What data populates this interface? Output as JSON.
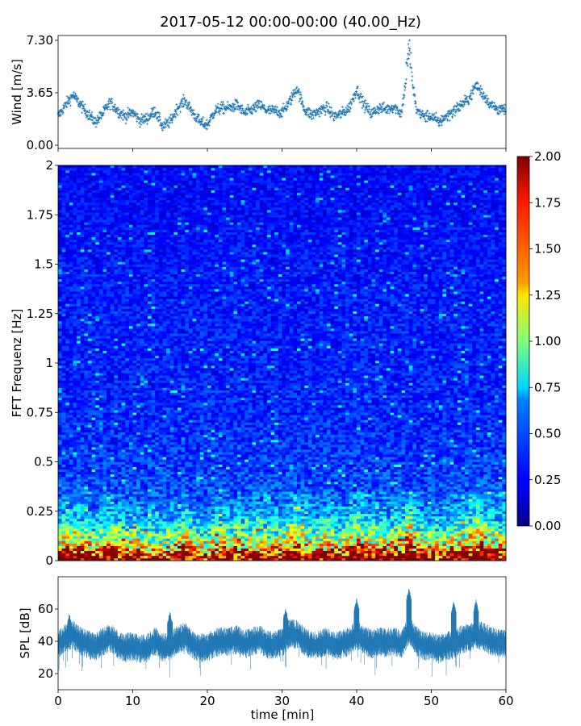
{
  "figure": {
    "title": "2017-05-12 00:00-00:00 (40.00_Hz)"
  },
  "chart_data": [
    {
      "type": "scatter",
      "panel": "wind",
      "ylabel": "Wind [m/s]",
      "xlabel": "",
      "xlim": [
        0,
        60
      ],
      "ylim": [
        0,
        7.3
      ],
      "yticks": [
        0.0,
        3.65,
        7.3
      ],
      "ytick_labels": [
        "0.00",
        "3.65",
        "7.30"
      ],
      "color": "#1f77b4",
      "marker": "+",
      "x": [
        0,
        1,
        2,
        3,
        4,
        5,
        6,
        7,
        8,
        9,
        10,
        11,
        12,
        13,
        14,
        15,
        16,
        17,
        18,
        19,
        20,
        21,
        22,
        23,
        24,
        25,
        26,
        27,
        28,
        29,
        30,
        31,
        32,
        33,
        34,
        35,
        36,
        37,
        38,
        39,
        40,
        41,
        42,
        43,
        44,
        45,
        46,
        47,
        48,
        49,
        50,
        51,
        52,
        53,
        54,
        55,
        56,
        57,
        58,
        59,
        60
      ],
      "values": [
        2.0,
        2.8,
        3.5,
        2.8,
        2.2,
        1.6,
        2.2,
        3.0,
        2.4,
        2.0,
        2.3,
        1.7,
        1.9,
        2.4,
        1.3,
        1.6,
        2.6,
        3.1,
        2.3,
        1.6,
        1.4,
        2.4,
        2.6,
        2.6,
        2.8,
        2.2,
        2.5,
        2.8,
        2.4,
        2.4,
        2.3,
        3.0,
        4.0,
        2.5,
        2.1,
        2.4,
        2.6,
        2.0,
        2.2,
        2.6,
        3.9,
        2.8,
        2.2,
        2.6,
        2.5,
        2.7,
        2.2,
        6.1,
        2.5,
        2.0,
        2.0,
        1.6,
        2.0,
        2.4,
        2.8,
        3.2,
        4.2,
        3.5,
        2.8,
        2.5,
        2.4
      ]
    },
    {
      "type": "heatmap",
      "panel": "spectrogram",
      "ylabel": "FFT Frequenz [Hz]",
      "xlabel": "",
      "xlim": [
        0,
        60
      ],
      "ylim": [
        0,
        2
      ],
      "yticks": [
        0,
        0.25,
        0.5,
        0.75,
        1,
        1.25,
        1.5,
        1.75,
        2
      ],
      "ytick_labels": [
        "0",
        "0.25",
        "0.5",
        "0.75",
        "1",
        "1.25",
        "1.5",
        "1.75",
        "2"
      ],
      "colormap": "jet",
      "colorbar": {
        "vmin": 0,
        "vmax": 2,
        "ticks": [
          0,
          0.25,
          0.5,
          0.75,
          1,
          1.25,
          1.5,
          1.75,
          2
        ],
        "tick_labels": [
          "0.00",
          "0.25",
          "0.50",
          "0.75",
          "1.00",
          "1.25",
          "1.50",
          "1.75",
          "2.00"
        ]
      },
      "frequency_profile": {
        "freq_hz": [
          0,
          0.02,
          0.05,
          0.1,
          0.15,
          0.2,
          0.25,
          0.3,
          0.5,
          0.75,
          1,
          1.25,
          1.5,
          1.75,
          2
        ],
        "typical_level": [
          2.0,
          1.9,
          1.4,
          1.0,
          0.8,
          0.6,
          0.5,
          0.42,
          0.36,
          0.32,
          0.3,
          0.3,
          0.28,
          0.26,
          0.25
        ]
      }
    },
    {
      "type": "line",
      "panel": "spl",
      "ylabel": "SPL [dB]",
      "xlabel": "time [min]",
      "xlim": [
        0,
        60
      ],
      "ylim": [
        10,
        80
      ],
      "yticks": [
        20,
        40,
        60
      ],
      "ytick_labels": [
        "20",
        "40",
        "60"
      ],
      "xticks": [
        0,
        10,
        20,
        30,
        40,
        50,
        60
      ],
      "xtick_labels": [
        "0",
        "10",
        "20",
        "30",
        "40",
        "50",
        "60"
      ],
      "color": "#1f77b4",
      "x": [
        0,
        1,
        2,
        3,
        4,
        5,
        6,
        7,
        8,
        9,
        10,
        11,
        12,
        13,
        14,
        15,
        16,
        17,
        18,
        19,
        20,
        21,
        22,
        23,
        24,
        25,
        26,
        27,
        28,
        29,
        30,
        31,
        32,
        33,
        34,
        35,
        36,
        37,
        38,
        39,
        40,
        41,
        42,
        43,
        44,
        45,
        46,
        47,
        48,
        49,
        50,
        51,
        52,
        53,
        54,
        55,
        56,
        57,
        58,
        59,
        60
      ],
      "values": [
        38,
        42,
        44,
        40,
        38,
        36,
        40,
        42,
        38,
        36,
        37,
        35,
        36,
        40,
        36,
        37,
        41,
        43,
        38,
        36,
        36,
        39,
        40,
        40,
        41,
        38,
        40,
        41,
        38,
        38,
        39,
        45,
        44,
        40,
        37,
        38,
        40,
        37,
        38,
        40,
        44,
        41,
        38,
        40,
        39,
        40,
        38,
        47,
        40,
        37,
        37,
        35,
        37,
        38,
        41,
        42,
        44,
        43,
        40,
        39,
        39
      ],
      "peaks": [
        [
          1.5,
          56
        ],
        [
          15,
          58
        ],
        [
          30.5,
          60
        ],
        [
          40,
          66
        ],
        [
          47,
          72
        ],
        [
          53,
          64
        ],
        [
          56,
          65
        ]
      ]
    }
  ]
}
